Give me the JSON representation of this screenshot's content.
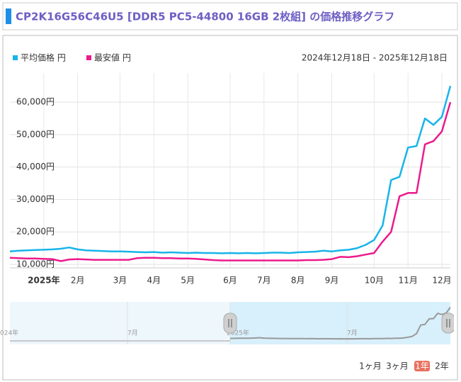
{
  "header": {
    "title": "CP2K16G56C46U5 [DDR5 PC5-44800 16GB 2枚組] の価格推移グラフ"
  },
  "chart_data": {
    "type": "line",
    "range_label": "2024年12月18日 - 2025年12月18日",
    "categories": [
      null,
      null,
      null,
      null,
      "2025年",
      null,
      null,
      null,
      "2月",
      null,
      null,
      null,
      null,
      "3月",
      null,
      null,
      null,
      "4月",
      null,
      null,
      null,
      "5月",
      null,
      null,
      null,
      null,
      "6月",
      null,
      null,
      null,
      "7月",
      null,
      null,
      null,
      "8月",
      null,
      null,
      null,
      "9月",
      null,
      null,
      null,
      null,
      "10月",
      null,
      null,
      null,
      "11月",
      null,
      null,
      null,
      "12月",
      null
    ],
    "series": [
      {
        "name": "平均価格 円",
        "color": "#18b4e9",
        "values": [
          14000,
          14200,
          14300,
          14400,
          14500,
          14600,
          14800,
          15200,
          14600,
          14300,
          14200,
          14100,
          14000,
          14000,
          13900,
          13800,
          13700,
          13800,
          13600,
          13700,
          13600,
          13500,
          13600,
          13500,
          13500,
          13400,
          13500,
          13400,
          13500,
          13400,
          13500,
          13600,
          13600,
          13500,
          13700,
          13800,
          13900,
          14200,
          14000,
          14300,
          14500,
          15000,
          16000,
          17500,
          22000,
          36000,
          37000,
          46000,
          46500,
          55000,
          53000,
          55500,
          65000
        ]
      },
      {
        "name": "最安値 円",
        "color": "#ec1a8c",
        "values": [
          12000,
          11900,
          11800,
          11800,
          11700,
          11600,
          11000,
          11500,
          11600,
          11500,
          11400,
          11400,
          11400,
          11400,
          11400,
          11900,
          12000,
          12000,
          11900,
          11900,
          11800,
          11800,
          11700,
          11500,
          11300,
          11200,
          11200,
          11200,
          11200,
          11200,
          11200,
          11200,
          11200,
          11200,
          11200,
          11300,
          11300,
          11400,
          11600,
          12300,
          12200,
          12500,
          13000,
          13500,
          17000,
          20000,
          31000,
          32000,
          32000,
          47000,
          48000,
          51000,
          60000
        ]
      }
    ],
    "ylim": [
      8900,
      69000
    ],
    "yticks": [
      {
        "value": 10000,
        "label": "10,000円"
      },
      {
        "value": 20000,
        "label": "20,000円"
      },
      {
        "value": 30000,
        "label": "30,000円"
      },
      {
        "value": 40000,
        "label": "40,000円"
      },
      {
        "value": 50000,
        "label": "50,000円"
      },
      {
        "value": 60000,
        "label": "60,000円"
      }
    ],
    "grid": true
  },
  "navigator": {
    "labels": [
      "024年",
      "7月",
      "2025年",
      "7月"
    ]
  },
  "range_buttons": {
    "items": [
      "1ヶ月",
      "3ヶ月",
      "1年",
      "2年"
    ],
    "selected": "1年"
  }
}
